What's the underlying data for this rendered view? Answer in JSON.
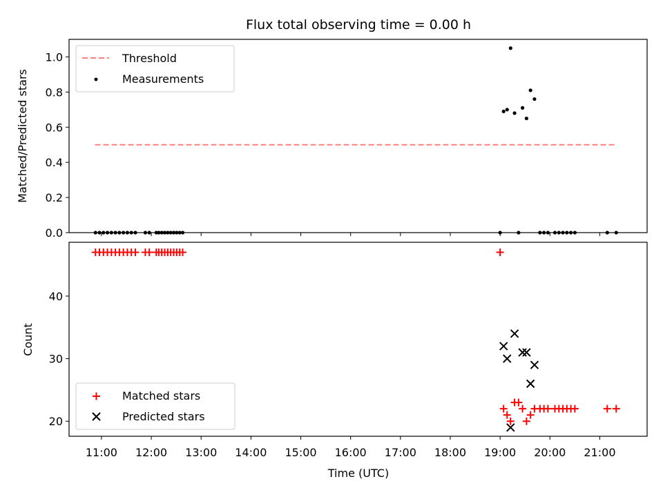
{
  "chart_data": [
    {
      "type": "scatter",
      "title": "Flux total observing time = 0.00 h",
      "xlabel": "",
      "ylabel": "Matched/Predicted stars",
      "ylim": [
        0,
        1.1
      ],
      "yticks": [
        0.0,
        0.2,
        0.4,
        0.6,
        0.8,
        1.0
      ],
      "ytick_labels": [
        "0.0",
        "0.2",
        "0.4",
        "0.6",
        "0.8",
        "1.0"
      ],
      "xlim_hours": [
        10.35,
        21.95
      ],
      "legend": "top-left",
      "legend_entries": [
        "Threshold",
        "Measurements"
      ],
      "threshold": {
        "name": "Threshold",
        "value": 0.5,
        "x_start": 10.87,
        "x_end": 21.32,
        "color": "#ff7f7f",
        "style": "dashed"
      },
      "series": [
        {
          "name": "Measurements",
          "color": "#000000",
          "marker": "dot",
          "x": [
            10.88,
            10.96,
            11.04,
            11.12,
            11.2,
            11.28,
            11.36,
            11.44,
            11.52,
            11.6,
            11.68,
            11.88,
            11.96,
            12.1,
            12.15,
            12.21,
            12.27,
            12.33,
            12.39,
            12.45,
            12.51,
            12.57,
            12.63,
            19.0,
            19.07,
            19.14,
            19.21,
            19.29,
            19.37,
            19.45,
            19.53,
            19.61,
            19.69,
            19.8,
            19.88,
            19.96,
            20.1,
            20.18,
            20.26,
            20.34,
            20.42,
            20.5,
            21.15,
            21.33
          ],
          "y": [
            0,
            0,
            0,
            0,
            0,
            0,
            0,
            0,
            0,
            0,
            0,
            0,
            0,
            0,
            0,
            0,
            0,
            0,
            0,
            0,
            0,
            0,
            0,
            0,
            0.69,
            0.7,
            1.05,
            0.68,
            0,
            0.71,
            0.65,
            0.81,
            0.76,
            0,
            0,
            0,
            0,
            0,
            0,
            0,
            0,
            0,
            0,
            0
          ]
        }
      ]
    },
    {
      "type": "scatter",
      "title": "",
      "xlabel": "Time (UTC)",
      "ylabel": "Count",
      "ylim": [
        17.6,
        48.6
      ],
      "yticks": [
        20,
        30,
        40
      ],
      "ytick_labels": [
        "20",
        "30",
        "40"
      ],
      "xlim_hours": [
        10.35,
        21.95
      ],
      "xticks": [
        11,
        12,
        13,
        14,
        15,
        16,
        17,
        18,
        19,
        20,
        21
      ],
      "xtick_labels": [
        "11:00",
        "12:00",
        "13:00",
        "14:00",
        "15:00",
        "16:00",
        "17:00",
        "18:00",
        "19:00",
        "20:00",
        "21:00"
      ],
      "legend": "lower-left",
      "legend_entries": [
        "Matched stars",
        "Predicted stars"
      ],
      "series": [
        {
          "name": "Matched stars",
          "color": "#ff0000",
          "marker": "plus",
          "x": [
            10.88,
            10.96,
            11.04,
            11.12,
            11.2,
            11.28,
            11.36,
            11.44,
            11.52,
            11.6,
            11.68,
            11.88,
            11.96,
            12.1,
            12.15,
            12.21,
            12.27,
            12.33,
            12.39,
            12.45,
            12.51,
            12.57,
            12.63,
            19.0,
            19.07,
            19.14,
            19.21,
            19.29,
            19.37,
            19.45,
            19.53,
            19.61,
            19.69,
            19.8,
            19.88,
            19.96,
            20.1,
            20.18,
            20.26,
            20.34,
            20.42,
            20.5,
            21.15,
            21.33
          ],
          "y": [
            47,
            47,
            47,
            47,
            47,
            47,
            47,
            47,
            47,
            47,
            47,
            47,
            47,
            47,
            47,
            47,
            47,
            47,
            47,
            47,
            47,
            47,
            47,
            47,
            22,
            21,
            20,
            23,
            23,
            22,
            20,
            21,
            22,
            22,
            22,
            22,
            22,
            22,
            22,
            22,
            22,
            22,
            22,
            22
          ]
        },
        {
          "name": "Predicted stars",
          "color": "#000000",
          "marker": "x",
          "x": [
            19.07,
            19.14,
            19.21,
            19.29,
            19.45,
            19.53,
            19.61,
            19.69
          ],
          "y": [
            32,
            30,
            19,
            34,
            31,
            31,
            26,
            29
          ]
        }
      ]
    }
  ]
}
